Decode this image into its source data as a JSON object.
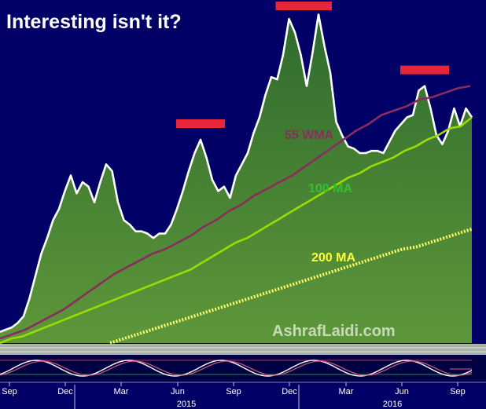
{
  "chart_data": {
    "type": "area",
    "title": "Interesting isn't it?",
    "watermark": "AshrafLaidi.com",
    "x_tick_labels": [
      "Sep",
      "Dec",
      "Mar",
      "Jun",
      "Sep",
      "Dec",
      "Mar",
      "Jun",
      "Sep"
    ],
    "year_labels": [
      "2015",
      "2016"
    ],
    "series": [
      {
        "name": "",
        "kind": "price-area",
        "values": [
          0.0,
          0.1,
          0.2,
          0.4,
          0.7,
          1.5,
          2.5,
          3.5,
          4.2,
          5.0,
          5.5,
          6.3,
          7.0,
          6.2,
          6.7,
          6.5,
          5.8,
          6.7,
          7.5,
          7.2,
          5.8,
          5.0,
          4.8,
          4.5,
          4.5,
          4.4,
          4.2,
          4.4,
          4.4,
          4.8,
          5.5,
          6.3,
          7.2,
          8.0,
          8.6,
          7.8,
          6.8,
          6.3,
          6.5,
          6.0,
          7.0,
          7.5,
          8.0,
          8.9,
          9.6,
          10.6,
          11.4,
          11.3,
          12.4,
          14.0,
          13.4,
          12.4,
          11.0,
          12.5,
          14.2,
          12.8,
          11.6,
          9.4,
          8.8,
          8.3,
          8.2,
          8.0,
          8.0,
          8.1,
          8.1,
          8.0,
          8.5,
          9.0,
          9.3,
          9.6,
          9.7,
          10.8,
          11.0,
          10.0,
          8.8,
          8.4,
          9.0,
          10.0,
          9.2,
          10.0,
          9.6
        ]
      },
      {
        "name": "55 WMA",
        "values": [
          -0.3,
          -0.1,
          0.1,
          0.4,
          0.7,
          1.0,
          1.4,
          1.8,
          2.2,
          2.6,
          2.9,
          3.2,
          3.5,
          3.7,
          4.0,
          4.3,
          4.7,
          5.0,
          5.4,
          5.7,
          6.1,
          6.4,
          6.7,
          7.0,
          7.4,
          7.8,
          8.2,
          8.6,
          9.0,
          9.3,
          9.7,
          9.9,
          10.1,
          10.4,
          10.5,
          10.7,
          10.9,
          11.0
        ]
      },
      {
        "name": "100 MA",
        "values": [
          -0.5,
          -0.3,
          -0.2,
          0.0,
          0.2,
          0.4,
          0.6,
          0.8,
          1.0,
          1.2,
          1.4,
          1.6,
          1.8,
          2.0,
          2.2,
          2.4,
          2.6,
          2.8,
          3.1,
          3.4,
          3.7,
          4.0,
          4.2,
          4.5,
          4.8,
          5.1,
          5.4,
          5.7,
          6.0,
          6.3,
          6.6,
          6.9,
          7.1,
          7.4,
          7.6,
          7.8,
          8.1,
          8.3,
          8.6,
          8.8,
          9.1,
          9.2,
          9.6
        ]
      },
      {
        "name": "200 MA",
        "values": [
          -0.5,
          -0.3,
          -0.1,
          0.1,
          0.3,
          0.5,
          0.7,
          0.9,
          1.1,
          1.3,
          1.5,
          1.7,
          1.9,
          2.1,
          2.3,
          2.5,
          2.7,
          2.9,
          3.1,
          3.3,
          3.5,
          3.7,
          3.8,
          4.0,
          4.2,
          4.4,
          4.6
        ]
      }
    ],
    "colors": {
      "background": "#000066",
      "price_line": "#ffffff",
      "area_top": "#2e6b2e",
      "area_bottom": "#5e973a",
      "wma55": "#8a2c5e",
      "ma100": "#99dd00",
      "ma200": "#ffff66",
      "marker": "#e8263a"
    },
    "peak_markers": 4,
    "grid": false
  }
}
